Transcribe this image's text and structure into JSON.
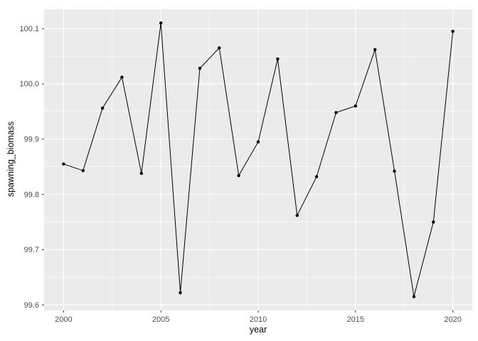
{
  "chart_data": {
    "type": "line",
    "title": "",
    "xlabel": "year",
    "ylabel": "spawning_biomass",
    "x": [
      2000,
      2001,
      2002,
      2003,
      2004,
      2005,
      2006,
      2007,
      2008,
      2009,
      2010,
      2011,
      2012,
      2013,
      2014,
      2015,
      2016,
      2017,
      2018,
      2019,
      2020
    ],
    "y": [
      99.855,
      99.843,
      99.956,
      100.012,
      99.838,
      100.11,
      99.622,
      100.028,
      100.065,
      99.834,
      99.895,
      100.045,
      99.762,
      99.832,
      99.948,
      99.96,
      100.062,
      99.842,
      99.615,
      99.75,
      100.095
    ],
    "xlim": [
      1999,
      2021
    ],
    "ylim": [
      99.59,
      100.135
    ],
    "x_ticks": [
      2000,
      2005,
      2010,
      2015,
      2020
    ],
    "y_ticks": [
      99.6,
      99.7,
      99.8,
      99.9,
      100.0,
      100.1
    ],
    "x_minor": [
      2002.5,
      2007.5,
      2012.5,
      2017.5
    ],
    "y_minor": [
      99.65,
      99.75,
      99.85,
      99.95,
      100.05
    ],
    "grid": true,
    "legend": "none",
    "colors": {
      "background": "#FFFFFF",
      "panel_bg": "#EBEBEB",
      "grid_major": "#FFFFFF",
      "grid_minor": "#FFFFFF",
      "line": "#000000",
      "point": "#000000",
      "tick_label": "#4D4D4D",
      "tick_mark": "#333333",
      "axis_title": "#000000"
    }
  }
}
